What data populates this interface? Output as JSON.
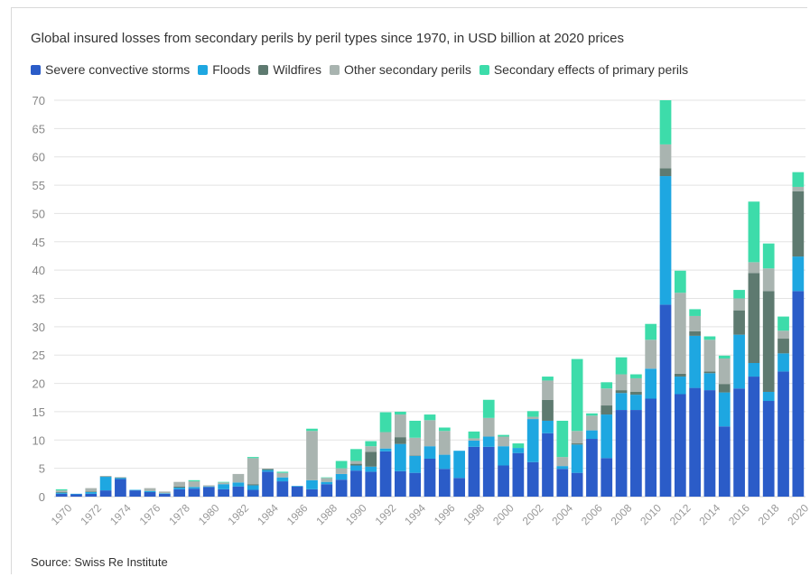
{
  "source": "Source: Swiss Re Institute",
  "colors": {
    "severe_convective_storms": "#2b5cc8",
    "floods": "#1ea7e1",
    "wildfires": "#5e7a70",
    "other_secondary_perils": "#a9b4b0",
    "secondary_effects_of_primary_perils": "#3ddcaa"
  },
  "chart_data": {
    "type": "bar",
    "stacked": true,
    "title": "Global insured losses from secondary perils by peril types since 1970, in USD billion at 2020 prices",
    "xlabel": "",
    "ylabel": "",
    "ylim": [
      0,
      70
    ],
    "yticks": [
      0,
      5,
      10,
      15,
      20,
      25,
      30,
      35,
      40,
      45,
      50,
      55,
      60,
      65,
      70
    ],
    "grid": true,
    "legend_position": "top-left",
    "x": [
      1970,
      1971,
      1972,
      1973,
      1974,
      1975,
      1976,
      1977,
      1978,
      1979,
      1980,
      1981,
      1982,
      1983,
      1984,
      1985,
      1986,
      1987,
      1988,
      1989,
      1990,
      1991,
      1992,
      1993,
      1994,
      1995,
      1996,
      1997,
      1998,
      1999,
      2000,
      2001,
      2002,
      2003,
      2004,
      2005,
      2006,
      2007,
      2008,
      2009,
      2010,
      2011,
      2012,
      2013,
      2014,
      2015,
      2016,
      2017,
      2018,
      2019,
      2020
    ],
    "tick_labels": [
      "1970",
      "1972",
      "1974",
      "1976",
      "1978",
      "1980",
      "1982",
      "1984",
      "1986",
      "1988",
      "1990",
      "1992",
      "1994",
      "1996",
      "1998",
      "2000",
      "2002",
      "2004",
      "2006",
      "2008",
      "2010",
      "2012",
      "2014",
      "2016",
      "2018",
      "2020"
    ],
    "series": [
      {
        "name": "Severe convective storms",
        "values": [
          0.5,
          0.4,
          0.5,
          1.1,
          3.1,
          1.1,
          0.8,
          0.5,
          1.3,
          1.4,
          1.7,
          1.3,
          1.8,
          1.2,
          4.4,
          2.7,
          1.8,
          1.3,
          2.2,
          3.0,
          4.6,
          4.4,
          8.0,
          4.5,
          4.2,
          6.7,
          4.9,
          3.3,
          8.8,
          8.8,
          5.5,
          7.7,
          6.1,
          11.2,
          4.9,
          4.2,
          10.2,
          6.8,
          15.3,
          15.3,
          17.3,
          33.9,
          18.1,
          19.2,
          18.8,
          12.4,
          19.1,
          21.2,
          16.9,
          22.1,
          36.3
        ]
      },
      {
        "name": "Floods",
        "values": [
          0.2,
          0.1,
          0.3,
          2.4,
          0.2,
          0.1,
          0.2,
          0.1,
          0.3,
          0.3,
          0.1,
          0.9,
          0.7,
          0.8,
          0.3,
          0.7,
          0.1,
          1.6,
          0.4,
          1.0,
          0.9,
          0.9,
          0.5,
          4.8,
          3.0,
          2.2,
          2.5,
          4.8,
          1.1,
          1.8,
          3.4,
          0.9,
          7.6,
          2.2,
          0.5,
          5.0,
          1.5,
          7.7,
          3.0,
          2.7,
          5.3,
          22.7,
          3.1,
          9.2,
          3.0,
          6.0,
          9.5,
          2.4,
          1.6,
          3.2,
          6.1
        ]
      },
      {
        "name": "Wildfires",
        "values": [
          0.1,
          0,
          0.1,
          0.1,
          0.1,
          0,
          0,
          0,
          0.2,
          0,
          0,
          0,
          0,
          0.2,
          0.2,
          0,
          0,
          0,
          0,
          0,
          0.3,
          2.6,
          0,
          1.2,
          0.1,
          0,
          0,
          0,
          0,
          0,
          0,
          0,
          0,
          3.7,
          0,
          0.2,
          0,
          1.6,
          0.5,
          0.5,
          0,
          1.4,
          0.5,
          0.8,
          0.3,
          1.5,
          4.3,
          15.9,
          17.8,
          2.6,
          11.5
        ]
      },
      {
        "name": "Other secondary perils",
        "values": [
          0.3,
          0,
          0.6,
          0,
          0,
          0,
          0.5,
          0.3,
          0.8,
          1.0,
          0.2,
          0.3,
          1.5,
          4.6,
          0,
          0.8,
          0,
          8.7,
          0.7,
          1.0,
          0.5,
          1.0,
          2.9,
          4.0,
          3.1,
          4.6,
          4.2,
          0,
          0.4,
          3.3,
          1.7,
          0,
          0.4,
          3.4,
          1.6,
          2.2,
          2.6,
          3.0,
          2.8,
          2.4,
          5.1,
          4.2,
          14.3,
          2.7,
          5.6,
          4.5,
          2.1,
          1.9,
          4.0,
          1.4,
          0.8
        ]
      },
      {
        "name": "Secondary effects of primary perils",
        "values": [
          0.2,
          0,
          0,
          0,
          0,
          0,
          0,
          0,
          0,
          0.2,
          0,
          0.1,
          0,
          0.2,
          0,
          0.2,
          0,
          0.4,
          0.1,
          1.3,
          2.1,
          0.9,
          3.5,
          0.5,
          3.0,
          1.0,
          0.6,
          0,
          1.2,
          3.2,
          0.3,
          0.8,
          1.0,
          0.7,
          6.4,
          12.7,
          0.4,
          1.1,
          3.0,
          0.7,
          2.8,
          7.8,
          3.9,
          1.2,
          0.6,
          0.5,
          1.5,
          10.7,
          4.4,
          2.5,
          2.6
        ]
      }
    ]
  }
}
